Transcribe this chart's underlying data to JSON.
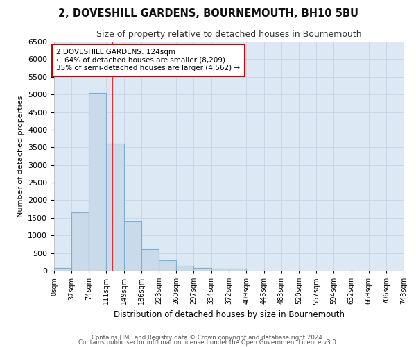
{
  "title": "2, DOVESHILL GARDENS, BOURNEMOUTH, BH10 5BU",
  "subtitle": "Size of property relative to detached houses in Bournemouth",
  "xlabel": "Distribution of detached houses by size in Bournemouth",
  "ylabel": "Number of detached properties",
  "bar_color": "#c9daea",
  "bar_edge_color": "#7bafd4",
  "bin_edges": [
    0,
    37,
    74,
    111,
    149,
    186,
    223,
    260,
    297,
    334,
    372,
    409,
    446,
    483,
    520,
    557,
    594,
    632,
    669,
    706,
    743
  ],
  "bar_heights": [
    75,
    1650,
    5050,
    3600,
    1400,
    610,
    295,
    145,
    75,
    50,
    50,
    0,
    0,
    0,
    0,
    0,
    0,
    0,
    0,
    0
  ],
  "red_line_x": 124,
  "annotation_text": "2 DOVESHILL GARDENS: 124sqm\n← 64% of detached houses are smaller (8,209)\n35% of semi-detached houses are larger (4,562) →",
  "annotation_box_color": "#ffffff",
  "annotation_border_color": "#cc0000",
  "ylim": [
    0,
    6500
  ],
  "yticks": [
    0,
    500,
    1000,
    1500,
    2000,
    2500,
    3000,
    3500,
    4000,
    4500,
    5000,
    5500,
    6000,
    6500
  ],
  "xtick_labels": [
    "0sqm",
    "37sqm",
    "74sqm",
    "111sqm",
    "149sqm",
    "186sqm",
    "223sqm",
    "260sqm",
    "297sqm",
    "334sqm",
    "372sqm",
    "409sqm",
    "446sqm",
    "483sqm",
    "520sqm",
    "557sqm",
    "594sqm",
    "632sqm",
    "669sqm",
    "706sqm",
    "743sqm"
  ],
  "footer_line1": "Contains HM Land Registry data © Crown copyright and database right 2024.",
  "footer_line2": "Contains public sector information licensed under the Open Government Licence v3.0.",
  "grid_color": "#c8d4e4",
  "bg_color": "#dce8f4",
  "fig_bg_color": "#ffffff"
}
